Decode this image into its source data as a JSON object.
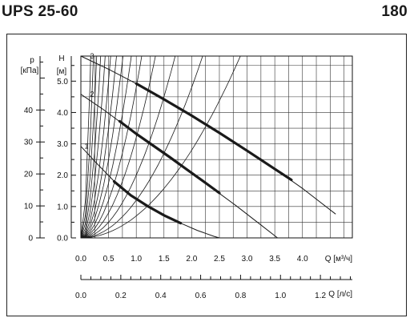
{
  "header": {
    "model": "UPS 25-60",
    "number": "180"
  },
  "chart_data": {
    "type": "line",
    "title": "",
    "ylabel_left": {
      "symbol": "p",
      "unit": "[кПа]"
    },
    "ylabel_right": {
      "symbol": "H",
      "unit": "[м]"
    },
    "xlabel": "Q [м³/ч]",
    "x2label": "Q [л/с]",
    "pressure_ticks": [
      "0",
      "10",
      "20",
      "30",
      "40"
    ],
    "head_ticks": [
      "0.0",
      "1.0",
      "2.0",
      "3.0",
      "4.0",
      "5.0"
    ],
    "flow_m3h_ticks": [
      "0.0",
      "0.5",
      "1.0",
      "1.5",
      "2.0",
      "2.5",
      "3.0",
      "3.5",
      "4.0"
    ],
    "flow_ls_ticks": [
      "0.0",
      "0.2",
      "0.4",
      "0.6",
      "0.8",
      "1.0",
      "1.2"
    ],
    "xlim": [
      0,
      4.9
    ],
    "ylim": [
      0,
      5.8
    ],
    "x2lim": [
      0,
      1.36
    ],
    "grid": true,
    "series": [
      {
        "name": "1",
        "x": [
          0.0,
          0.3,
          0.6,
          0.9,
          1.2,
          1.5,
          1.8,
          2.1,
          2.4,
          2.5
        ],
        "y": [
          2.92,
          2.35,
          1.81,
          1.36,
          1.02,
          0.72,
          0.47,
          0.24,
          0.05,
          0.0
        ]
      },
      {
        "name": "2",
        "x": [
          0.0,
          0.4,
          0.8,
          1.2,
          1.6,
          2.0,
          2.4,
          2.8,
          3.2,
          3.55
        ],
        "y": [
          4.58,
          4.1,
          3.58,
          3.08,
          2.58,
          2.07,
          1.55,
          1.03,
          0.48,
          0.0
        ]
      },
      {
        "name": "3",
        "x": [
          0.0,
          0.5,
          1.0,
          1.5,
          2.0,
          2.5,
          3.0,
          3.5,
          4.0,
          4.6
        ],
        "y": [
          5.8,
          5.38,
          4.92,
          4.42,
          3.9,
          3.35,
          2.78,
          2.2,
          1.58,
          0.76
        ]
      }
    ],
    "operating_ranges": [
      {
        "name": "1",
        "x": [
          0.6,
          0.9,
          1.2,
          1.5,
          1.8
        ],
        "y": [
          1.8,
          1.36,
          1.02,
          0.72,
          0.47
        ]
      },
      {
        "name": "2",
        "x": [
          0.7,
          1.0,
          1.3,
          1.6,
          1.9,
          2.2,
          2.5
        ],
        "y": [
          3.72,
          3.32,
          2.95,
          2.58,
          2.2,
          1.82,
          1.43
        ]
      },
      {
        "name": "3",
        "x": [
          1.0,
          1.5,
          2.0,
          2.5,
          3.0,
          3.5,
          3.8
        ],
        "y": [
          4.92,
          4.42,
          3.9,
          3.35,
          2.78,
          2.2,
          1.85
        ]
      }
    ],
    "system_curve_coefficients": [
      0.7,
      1.2,
      2.0,
      3.2,
      4.8,
      7.0,
      10.0,
      14.0,
      20.0,
      30.0,
      45.0,
      70.0,
      110.0,
      180.0
    ],
    "axis_color": "#111111",
    "grid_color": "#333333",
    "curve_color": "#1a1a1a"
  }
}
